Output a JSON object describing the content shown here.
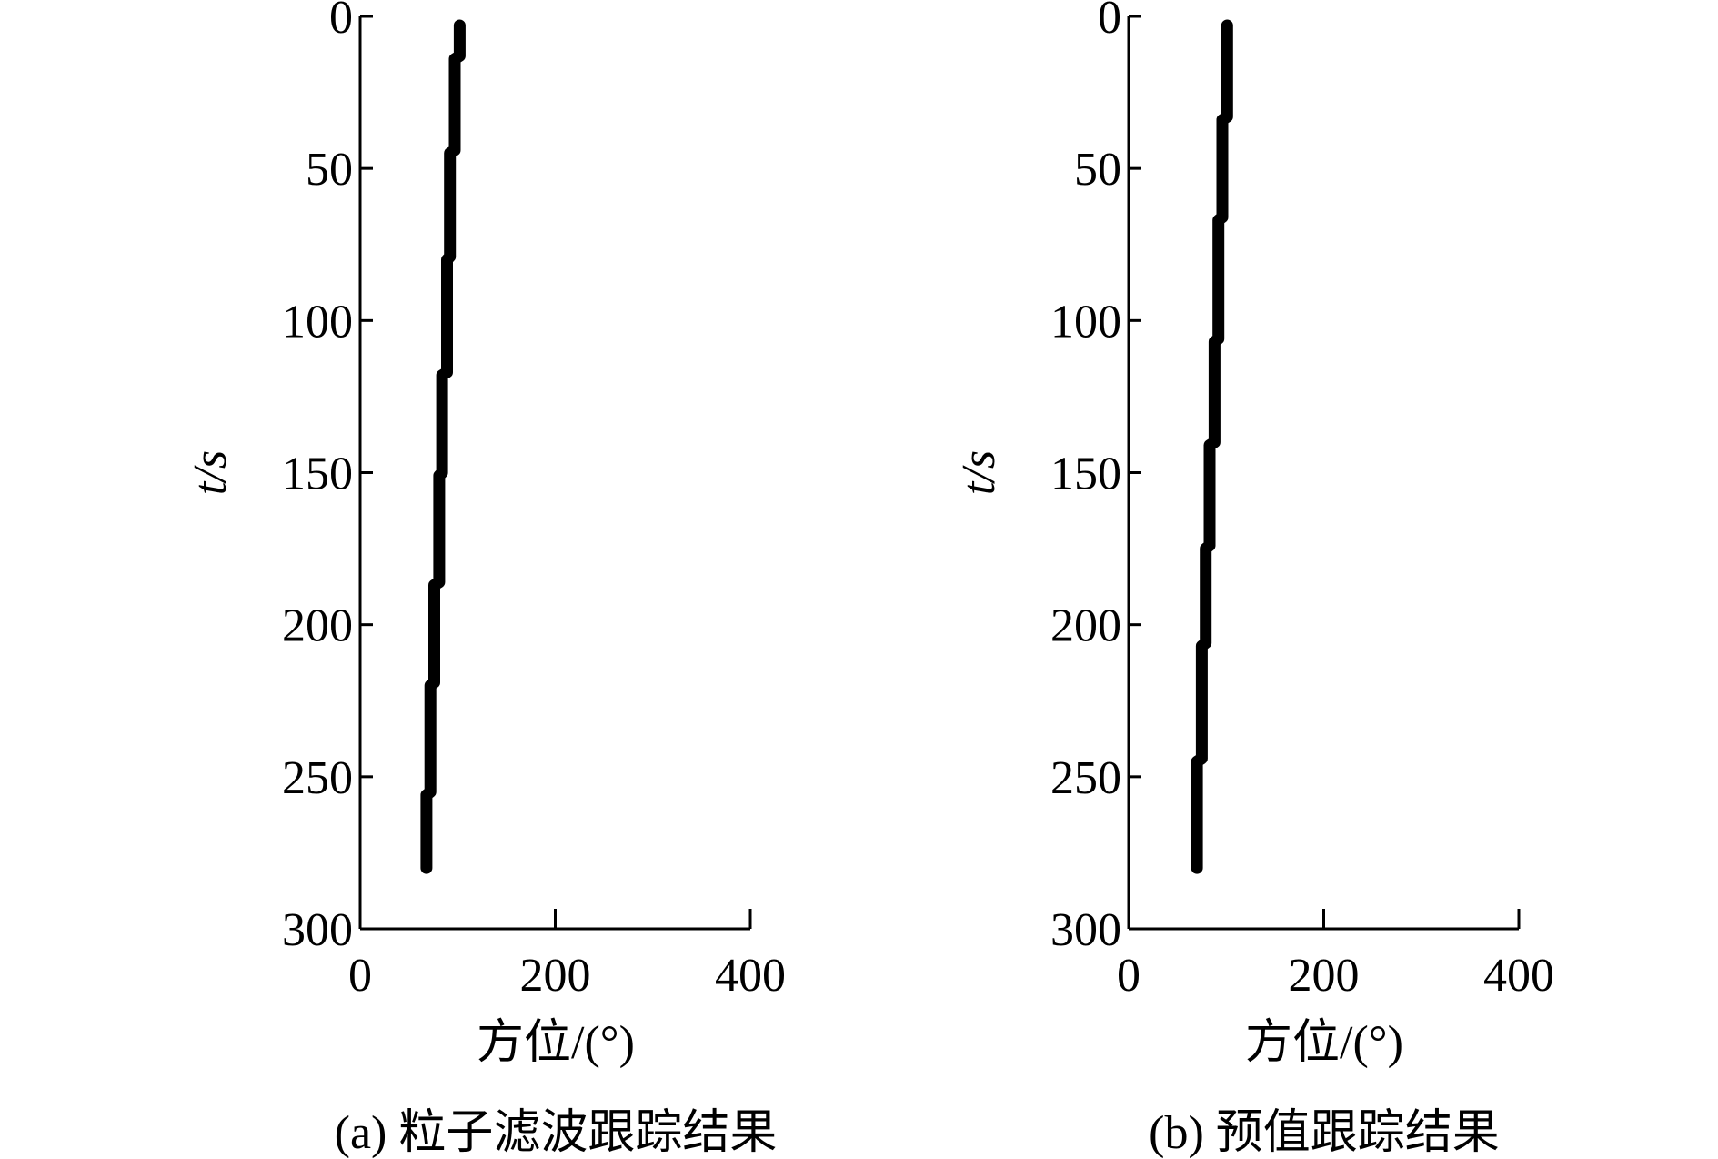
{
  "chart_data": [
    {
      "type": "line",
      "caption": "(a) 粒子滤波跟踪结果",
      "xlabel": "方位/(°)",
      "ylabel": "t/s",
      "xlim": [
        0,
        400
      ],
      "xticks": [
        0,
        200,
        400
      ],
      "ylim": [
        0,
        300
      ],
      "yticks": [
        0,
        50,
        100,
        150,
        200,
        250,
        300
      ],
      "y_inverted": true,
      "color": "#000000",
      "x": [
        102,
        102,
        97,
        97,
        92,
        92,
        89,
        89,
        84,
        84,
        81,
        81,
        76,
        76,
        72,
        72,
        68,
        68
      ],
      "values": [
        3,
        13,
        14,
        44,
        45,
        79,
        80,
        117,
        118,
        150,
        151,
        186,
        187,
        219,
        220,
        255,
        256,
        280
      ]
    },
    {
      "type": "line",
      "caption": "(b) 预值跟踪结果",
      "xlabel": "方位/(°)",
      "ylabel": "t/s",
      "xlim": [
        0,
        400
      ],
      "xticks": [
        0,
        200,
        400
      ],
      "ylim": [
        0,
        300
      ],
      "yticks": [
        0,
        50,
        100,
        150,
        200,
        250,
        300
      ],
      "y_inverted": true,
      "color": "#000000",
      "x": [
        101,
        101,
        96,
        96,
        92,
        92,
        88,
        88,
        83,
        83,
        79,
        79,
        75,
        75,
        70,
        70
      ],
      "values": [
        3,
        33,
        34,
        66,
        67,
        106,
        107,
        140,
        141,
        174,
        175,
        206,
        207,
        244,
        245,
        280
      ]
    }
  ]
}
